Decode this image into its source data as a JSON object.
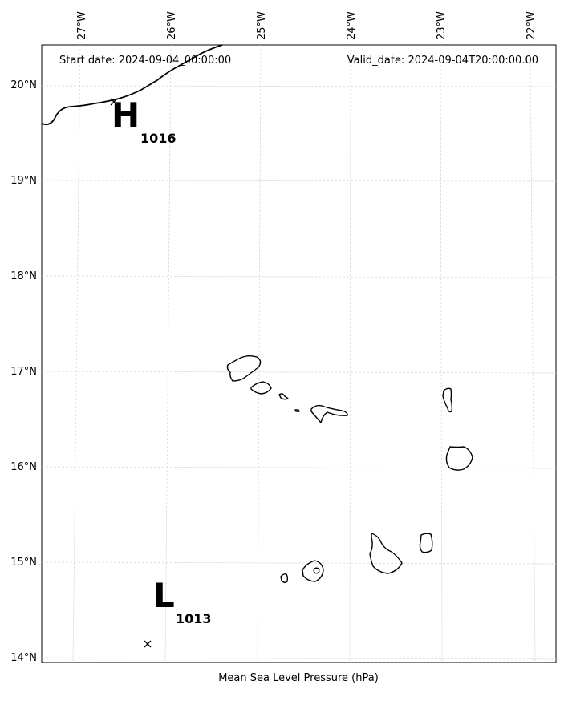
{
  "header": {
    "start_date": "Start date: 2024-09-04_00:00:00",
    "valid_date": "Valid_date: 2024-09-04T20:00:00.00"
  },
  "caption": "Mean Sea Level Pressure (hPa)",
  "lon_labels": [
    "27°W",
    "26°W",
    "25°W",
    "24°W",
    "23°W",
    "22°W"
  ],
  "lat_labels": [
    "20°N",
    "19°N",
    "18°N",
    "17°N",
    "16°N",
    "15°N",
    "14°N"
  ],
  "pressure_centers": [
    {
      "symbol": "H",
      "value": "1016",
      "lon": -26.5,
      "lat": 19.85
    },
    {
      "symbol": "L",
      "value": "1013",
      "lon": -26.2,
      "lat": 14.15
    }
  ]
}
